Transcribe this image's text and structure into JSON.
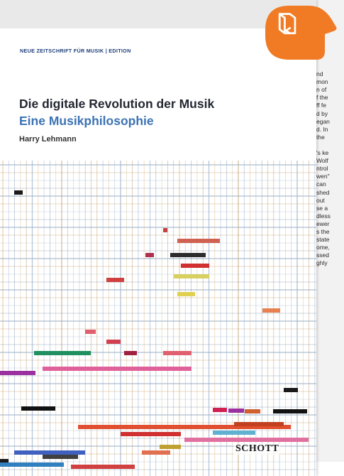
{
  "cover": {
    "series": "NEUE ZEITSCHRIFT FÜR MUSIK | EDITION",
    "title": "Die digitale Revolution der Musik",
    "subtitle": "Eine Musikphilosophie",
    "author": "Harry Lehmann",
    "publisher": "SCHOTT"
  },
  "back_page_lines": [
    "",
    "nd",
    "mon",
    "n of",
    "f the",
    "ff fe",
    "d by",
    "egan",
    "d. In",
    "the",
    "",
    "'s ke",
    "Wolf",
    "ntrol",
    "wen\"",
    "can",
    "shed",
    "out",
    "se a",
    "dless",
    "ewer",
    "s the",
    "state",
    "ome,",
    "ssed",
    "ghly"
  ],
  "read_button": {
    "icon": "open-book-icon",
    "color": "#f07b24"
  },
  "colors": {
    "title": "#222831",
    "subtitle": "#3c73b4",
    "series": "#1f3f7a",
    "accent": "#f07b24"
  }
}
